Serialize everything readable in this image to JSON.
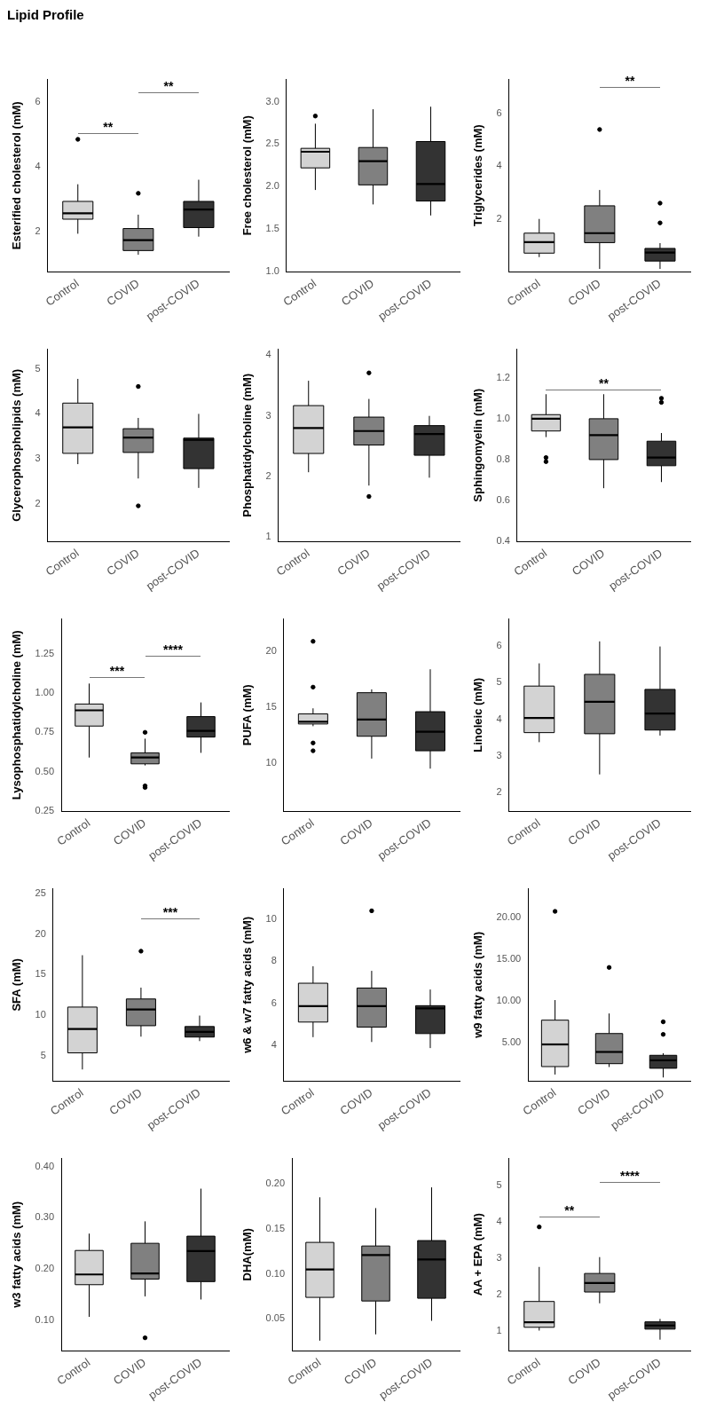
{
  "chart_data": [
    {
      "type": "box",
      "title": "Lipid Profile",
      "ylabel": "Esterified cholesterol (mM)",
      "categories": [
        "Control",
        "COVID",
        "post-COVID"
      ],
      "colors": [
        "#d3d3d3",
        "#808080",
        "#333333"
      ],
      "ylim": [
        0.76,
        6.7
      ],
      "yticks": [
        2,
        4,
        6
      ],
      "boxes": [
        {
          "low": 1.93,
          "q1": 2.38,
          "median": 2.56,
          "q3": 2.93,
          "high": 3.46,
          "outliers": [
            4.85
          ]
        },
        {
          "low": 1.28,
          "q1": 1.41,
          "median": 1.73,
          "q3": 2.09,
          "high": 2.52,
          "outliers": [
            3.18
          ]
        },
        {
          "low": 1.84,
          "q1": 2.12,
          "median": 2.68,
          "q3": 2.93,
          "high": 3.6
        }
      ],
      "annotations": [
        "**",
        "**"
      ]
    },
    {
      "type": "box",
      "ylabel": "Free cholesterol (mM)",
      "categories": [
        "Control",
        "COVID",
        "post-COVID"
      ],
      "colors": [
        "#d3d3d3",
        "#808080",
        "#333333"
      ],
      "ylim": [
        1.0,
        3.26
      ],
      "yticks": [
        {
          "value": 1,
          "label": "1.0"
        },
        1.5,
        {
          "value": 2,
          "label": "2.0"
        },
        2.5,
        {
          "value": 3,
          "label": "3.0"
        }
      ],
      "boxes": [
        {
          "low": 1.96,
          "q1": 2.22,
          "median": 2.41,
          "q3": 2.45,
          "high": 2.74,
          "outliers": [
            2.83
          ]
        },
        {
          "low": 1.79,
          "q1": 2.02,
          "median": 2.3,
          "q3": 2.46,
          "high": 2.91
        },
        {
          "low": 1.66,
          "q1": 1.83,
          "median": 2.03,
          "q3": 2.53,
          "high": 2.94
        }
      ]
    },
    {
      "type": "box",
      "ylabel": "Triglycerides (mM)",
      "categories": [
        "Control",
        "COVID",
        "post-COVID"
      ],
      "colors": [
        "#d3d3d3",
        "#808080",
        "#333333"
      ],
      "ylim": [
        0,
        7.3
      ],
      "yticks": [
        2,
        4,
        6
      ],
      "boxes": [
        {
          "low": 0.55,
          "q1": 0.7,
          "median": 1.12,
          "q3": 1.46,
          "high": 2.0
        },
        {
          "low": 0.1,
          "q1": 1.1,
          "median": 1.46,
          "q3": 2.5,
          "high": 3.1,
          "outliers": [
            5.4
          ]
        },
        {
          "low": 0.1,
          "q1": 0.4,
          "median": 0.72,
          "q3": 0.88,
          "high": 1.08,
          "outliers": [
            1.85,
            2.6
          ]
        }
      ],
      "annotations": [
        "**"
      ]
    },
    {
      "type": "box",
      "ylabel": "Glycerophospholipids (mM)",
      "categories": [
        "Control",
        "COVID",
        "post-COVID"
      ],
      "colors": [
        "#d3d3d3",
        "#808080",
        "#333333"
      ],
      "ylim": [
        1.16,
        5.44
      ],
      "yticks": [
        2,
        3,
        4,
        5
      ],
      "boxes": [
        {
          "low": 2.88,
          "q1": 3.12,
          "median": 3.7,
          "q3": 4.24,
          "high": 4.78
        },
        {
          "low": 2.56,
          "q1": 3.14,
          "median": 3.47,
          "q3": 3.67,
          "high": 3.91,
          "outliers": [
            4.61,
            1.95
          ]
        },
        {
          "low": 2.35,
          "q1": 2.78,
          "median": 3.42,
          "q3": 3.46,
          "high": 4.0
        }
      ]
    },
    {
      "type": "box",
      "ylabel": "Phosphatidylcholine (mM)",
      "categories": [
        "Control",
        "COVID",
        "post-COVID"
      ],
      "colors": [
        "#d3d3d3",
        "#808080",
        "#333333"
      ],
      "ylim": [
        0.93,
        4.1
      ],
      "yticks": [
        1,
        2,
        3,
        4
      ],
      "boxes": [
        {
          "low": 2.07,
          "q1": 2.38,
          "median": 2.8,
          "q3": 3.17,
          "high": 3.58
        },
        {
          "low": 1.85,
          "q1": 2.52,
          "median": 2.75,
          "q3": 2.98,
          "high": 3.28,
          "outliers": [
            3.71,
            1.67
          ]
        },
        {
          "low": 1.98,
          "q1": 2.35,
          "median": 2.7,
          "q3": 2.84,
          "high": 3.0
        }
      ]
    },
    {
      "type": "box",
      "ylabel": "Sphingomyelin (mM)",
      "categories": [
        "Control",
        "COVID",
        "post-COVID"
      ],
      "colors": [
        "#d3d3d3",
        "#808080",
        "#333333"
      ],
      "ylim": [
        0.4,
        1.34
      ],
      "yticks": [
        0.4,
        0.6,
        0.8,
        {
          "value": 1,
          "label": "1.0"
        },
        1.2
      ],
      "boxes": [
        {
          "low": 0.91,
          "q1": 0.94,
          "median": 1.0,
          "q3": 1.02,
          "high": 1.12,
          "outliers": [
            0.81,
            0.79
          ]
        },
        {
          "low": 0.66,
          "q1": 0.8,
          "median": 0.92,
          "q3": 1.0,
          "high": 1.12
        },
        {
          "low": 0.69,
          "q1": 0.77,
          "median": 0.81,
          "q3": 0.89,
          "high": 0.93,
          "outliers": [
            1.1,
            1.08
          ]
        }
      ],
      "annotations": [
        "**"
      ]
    },
    {
      "type": "box",
      "ylabel": "Lysophosphatidylcholine (mM)",
      "categories": [
        "Control",
        "COVID",
        "post-COVID"
      ],
      "colors": [
        "#d3d3d3",
        "#808080",
        "#333333"
      ],
      "ylim": [
        0.25,
        1.47
      ],
      "yticks": [
        0.25,
        {
          "value": 0.5,
          "label": "0.50"
        },
        0.75,
        {
          "value": 1,
          "label": "1.00"
        },
        1.25
      ],
      "boxes": [
        {
          "low": 0.59,
          "q1": 0.79,
          "median": 0.89,
          "q3": 0.93,
          "high": 1.06
        },
        {
          "low": 0.54,
          "q1": 0.55,
          "median": 0.59,
          "q3": 0.62,
          "high": 0.71,
          "outliers": [
            0.75,
            0.41,
            0.4
          ]
        },
        {
          "low": 0.62,
          "q1": 0.72,
          "median": 0.76,
          "q3": 0.85,
          "high": 0.94
        }
      ],
      "annotations": [
        "***",
        "****"
      ]
    },
    {
      "type": "box",
      "ylabel": "PUFA (mM)",
      "categories": [
        "Control",
        "COVID",
        "post-COVID"
      ],
      "colors": [
        "#d3d3d3",
        "#808080",
        "#333333"
      ],
      "ylim": [
        5.7,
        22.9
      ],
      "yticks": [
        10,
        15,
        20
      ],
      "boxes": [
        {
          "low": 13.3,
          "q1": 13.5,
          "median": 13.7,
          "q3": 14.4,
          "high": 14.9,
          "outliers": [
            20.9,
            16.8,
            11.8,
            11.1
          ]
        },
        {
          "low": 10.4,
          "q1": 12.4,
          "median": 13.9,
          "q3": 16.3,
          "high": 16.6
        },
        {
          "low": 9.5,
          "q1": 11.1,
          "median": 12.8,
          "q3": 14.6,
          "high": 18.4
        }
      ]
    },
    {
      "type": "box",
      "ylabel": "Linoleic (mM)",
      "categories": [
        "Control",
        "COVID",
        "post-COVID"
      ],
      "colors": [
        "#d3d3d3",
        "#808080",
        "#333333"
      ],
      "ylim": [
        1.5,
        6.74
      ],
      "yticks": [
        2,
        3,
        4,
        5,
        6
      ],
      "boxes": [
        {
          "low": 3.38,
          "q1": 3.64,
          "median": 4.04,
          "q3": 4.91,
          "high": 5.53
        },
        {
          "low": 2.5,
          "q1": 3.61,
          "median": 4.48,
          "q3": 5.23,
          "high": 6.13
        },
        {
          "low": 3.56,
          "q1": 3.71,
          "median": 4.16,
          "q3": 4.82,
          "high": 5.99
        }
      ]
    },
    {
      "type": "box",
      "ylabel": "SFA (mM)",
      "categories": [
        "Control",
        "COVID",
        "post-COVID"
      ],
      "colors": [
        "#d3d3d3",
        "#808080",
        "#333333"
      ],
      "ylim": [
        1.9,
        25.6
      ],
      "yticks": [
        5,
        10,
        15,
        20,
        25
      ],
      "boxes": [
        {
          "low": 3.3,
          "q1": 5.35,
          "median": 8.3,
          "q3": 11.0,
          "high": 17.4
        },
        {
          "low": 7.35,
          "q1": 8.7,
          "median": 10.7,
          "q3": 12.0,
          "high": 13.4,
          "outliers": [
            17.9
          ]
        },
        {
          "low": 6.8,
          "q1": 7.3,
          "median": 7.95,
          "q3": 8.6,
          "high": 9.95
        }
      ],
      "annotations": [
        "***"
      ]
    },
    {
      "type": "box",
      "ylabel": "w6 & w7 fatty acids (mM)",
      "categories": [
        "Control",
        "COVID",
        "post-COVID"
      ],
      "colors": [
        "#d3d3d3",
        "#808080",
        "#333333"
      ],
      "ylim": [
        2.3,
        11.45
      ],
      "yticks": [
        4,
        6,
        8,
        10
      ],
      "boxes": [
        {
          "low": 4.38,
          "q1": 5.1,
          "median": 5.86,
          "q3": 6.95,
          "high": 7.76
        },
        {
          "low": 4.15,
          "q1": 4.86,
          "median": 5.86,
          "q3": 6.72,
          "high": 7.54,
          "outliers": [
            10.4
          ]
        },
        {
          "low": 3.86,
          "q1": 4.55,
          "median": 5.75,
          "q3": 5.88,
          "high": 6.65
        }
      ]
    },
    {
      "type": "box",
      "ylabel": "w9 fatty acids (mM)",
      "categories": [
        "Control",
        "COVID",
        "post-COVID"
      ],
      "colors": [
        "#d3d3d3",
        "#808080",
        "#333333"
      ],
      "ylim": [
        0.45,
        23.4
      ],
      "yticks": [
        {
          "value": 5,
          "label": "5.00"
        },
        {
          "value": 10,
          "label": "10.00"
        },
        {
          "value": 15,
          "label": "15.00"
        },
        {
          "value": 20,
          "label": "20.00"
        }
      ],
      "boxes": [
        {
          "low": 1.2,
          "q1": 2.15,
          "median": 4.8,
          "q3": 7.7,
          "high": 10.1,
          "outliers": [
            20.7
          ]
        },
        {
          "low": 2.1,
          "q1": 2.5,
          "median": 3.9,
          "q3": 6.1,
          "high": 8.5,
          "outliers": [
            14.0
          ]
        },
        {
          "low": 0.85,
          "q1": 1.95,
          "median": 2.9,
          "q3": 3.5,
          "high": 3.75,
          "outliers": [
            7.5,
            6.0
          ]
        }
      ]
    },
    {
      "type": "box",
      "ylabel": "w3 fatty acids (mM)",
      "categories": [
        "Control",
        "COVID",
        "post-COVID"
      ],
      "colors": [
        "#d3d3d3",
        "#808080",
        "#333333"
      ],
      "ylim": [
        0.04,
        0.416
      ],
      "yticks": [
        {
          "value": 0.1,
          "label": "0.10"
        },
        {
          "value": 0.2,
          "label": "0.20"
        },
        {
          "value": 0.3,
          "label": "0.30"
        },
        {
          "value": 0.4,
          "label": "0.40"
        }
      ],
      "boxes": [
        {
          "low": 0.106,
          "q1": 0.169,
          "median": 0.189,
          "q3": 0.236,
          "high": 0.269
        },
        {
          "low": 0.146,
          "q1": 0.18,
          "median": 0.191,
          "q3": 0.25,
          "high": 0.293,
          "outliers": [
            0.065
          ]
        },
        {
          "low": 0.14,
          "q1": 0.175,
          "median": 0.235,
          "q3": 0.264,
          "high": 0.357
        }
      ]
    },
    {
      "type": "box",
      "ylabel": "DHA(mM)",
      "categories": [
        "Control",
        "COVID",
        "post-COVID"
      ],
      "colors": [
        "#d3d3d3",
        "#808080",
        "#333333"
      ],
      "ylim": [
        0.015,
        0.228
      ],
      "yticks": [
        0.05,
        {
          "value": 0.1,
          "label": "0.10"
        },
        0.15,
        {
          "value": 0.2,
          "label": "0.20"
        }
      ],
      "boxes": [
        {
          "low": 0.026,
          "q1": 0.074,
          "median": 0.105,
          "q3": 0.135,
          "high": 0.185
        },
        {
          "low": 0.033,
          "q1": 0.07,
          "median": 0.121,
          "q3": 0.131,
          "high": 0.173
        },
        {
          "low": 0.048,
          "q1": 0.073,
          "median": 0.116,
          "q3": 0.137,
          "high": 0.196
        }
      ]
    },
    {
      "type": "box",
      "ylabel": "AA + EPA (mM)",
      "categories": [
        "Control",
        "COVID",
        "post-COVID"
      ],
      "colors": [
        "#d3d3d3",
        "#808080",
        "#333333"
      ],
      "ylim": [
        0.45,
        5.73
      ],
      "yticks": [
        1,
        2,
        3,
        4,
        5
      ],
      "boxes": [
        {
          "low": 1.0,
          "q1": 1.09,
          "median": 1.23,
          "q3": 1.8,
          "high": 2.75,
          "outliers": [
            3.85
          ]
        },
        {
          "low": 1.75,
          "q1": 2.06,
          "median": 2.31,
          "q3": 2.57,
          "high": 3.02
        },
        {
          "low": 0.75,
          "q1": 1.04,
          "median": 1.14,
          "q3": 1.24,
          "high": 1.32
        }
      ],
      "annotations": [
        "**",
        "****"
      ]
    }
  ]
}
